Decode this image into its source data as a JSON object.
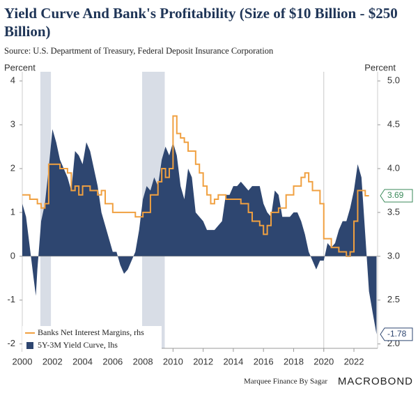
{
  "chart_data": {
    "type": "combo",
    "title": "Yield Curve And Bank's Profitability (Size of $10 Billion - $250 Billion)",
    "subtitle": "Source: U.S. Department of Treasury, Federal Deposit Insurance Corporation",
    "y_label": "Percent",
    "y2_label": "Percent",
    "footer": "Marquee Finance By Sagar",
    "brand": "MACROBOND",
    "xlim": [
      2000,
      2023.57
    ],
    "xticks": [
      2000,
      2002,
      2004,
      2006,
      2008,
      2010,
      2012,
      2014,
      2016,
      2018,
      2020,
      2022
    ],
    "ylim": [
      -2.1,
      4.05
    ],
    "yticks": [
      -2,
      -1,
      0,
      1,
      2,
      3,
      4
    ],
    "y2lim": [
      1.95,
      5.025
    ],
    "y2ticks": [
      {
        "value": 2,
        "label": "2.0"
      },
      2.5,
      {
        "value": 3,
        "label": "3.0"
      },
      3.5,
      {
        "value": 4,
        "label": "4.0"
      },
      4.5,
      {
        "value": 5,
        "label": "5.0"
      }
    ],
    "shaded_periods": [
      [
        2001.2,
        2001.9
      ],
      [
        2007.95,
        2009.45
      ]
    ],
    "reference_x": 2020,
    "series": [
      {
        "name": "Banks Net Interest Margins, rhs",
        "color": "#f0a040",
        "kind": "step",
        "axis": "y2",
        "x": [
          2000.0,
          2000.5,
          2001.0,
          2001.25,
          2001.5,
          2001.75,
          2002.5,
          2003.0,
          2003.25,
          2003.5,
          2003.75,
          2004.0,
          2004.5,
          2005.0,
          2005.25,
          2005.5,
          2006.0,
          2007.5,
          2008.0,
          2008.5,
          2009.0,
          2009.25,
          2009.5,
          2009.75,
          2010.0,
          2010.25,
          2010.5,
          2010.75,
          2011.0,
          2011.5,
          2011.75,
          2012.0,
          2012.25,
          2012.5,
          2012.75,
          2013.0,
          2013.5,
          2014.5,
          2015.0,
          2015.25,
          2015.75,
          2016.0,
          2016.25,
          2016.5,
          2017.0,
          2017.5,
          2018.0,
          2018.5,
          2018.75,
          2019.0,
          2019.25,
          2019.75,
          2020.0,
          2020.5,
          2021.0,
          2021.5,
          2021.75,
          2022.0,
          2022.25,
          2022.75,
          2023.0
        ],
        "values": [
          3.7,
          3.65,
          3.6,
          3.55,
          3.6,
          4.05,
          4.0,
          3.95,
          3.75,
          3.8,
          3.7,
          3.8,
          3.75,
          3.7,
          3.75,
          3.6,
          3.5,
          3.45,
          3.5,
          3.7,
          3.85,
          4.0,
          3.9,
          4.0,
          4.6,
          4.4,
          4.35,
          4.3,
          4.2,
          4.05,
          3.95,
          3.8,
          3.7,
          3.6,
          3.65,
          3.7,
          3.65,
          3.6,
          3.5,
          3.4,
          3.35,
          3.25,
          3.35,
          3.5,
          3.55,
          3.7,
          3.8,
          3.9,
          3.95,
          3.85,
          3.75,
          3.6,
          3.2,
          3.1,
          3.05,
          3.0,
          3.05,
          3.4,
          3.75,
          3.69,
          3.69
        ]
      },
      {
        "name": "5Y-3M Yield Curve, lhs",
        "color": "#2e4670",
        "kind": "area",
        "axis": "y",
        "x": [
          2000.0,
          2000.25,
          2000.5,
          2000.75,
          2000.9,
          2001.0,
          2001.25,
          2001.5,
          2001.75,
          2002.0,
          2002.25,
          2002.5,
          2002.75,
          2003.0,
          2003.25,
          2003.5,
          2003.75,
          2004.0,
          2004.25,
          2004.5,
          2004.75,
          2005.0,
          2005.25,
          2005.5,
          2005.75,
          2006.0,
          2006.25,
          2006.5,
          2006.75,
          2007.0,
          2007.25,
          2007.5,
          2007.75,
          2008.0,
          2008.25,
          2008.5,
          2008.75,
          2009.0,
          2009.25,
          2009.5,
          2009.75,
          2010.0,
          2010.25,
          2010.5,
          2010.75,
          2011.0,
          2011.25,
          2011.5,
          2011.75,
          2012.0,
          2012.25,
          2012.5,
          2012.75,
          2013.0,
          2013.25,
          2013.5,
          2013.75,
          2014.0,
          2014.25,
          2014.5,
          2014.75,
          2015.0,
          2015.25,
          2015.5,
          2015.75,
          2016.0,
          2016.25,
          2016.5,
          2016.75,
          2017.0,
          2017.25,
          2017.5,
          2017.75,
          2018.0,
          2018.25,
          2018.5,
          2018.75,
          2019.0,
          2019.25,
          2019.5,
          2019.75,
          2020.0,
          2020.25,
          2020.5,
          2020.75,
          2021.0,
          2021.25,
          2021.5,
          2021.75,
          2022.0,
          2022.25,
          2022.5,
          2022.75,
          2023.0,
          2023.25,
          2023.5
        ],
        "values": [
          1.2,
          0.9,
          0.2,
          -0.5,
          -0.9,
          -0.3,
          0.8,
          1.2,
          2.0,
          2.9,
          2.6,
          2.2,
          2.0,
          1.8,
          1.5,
          2.4,
          2.3,
          2.1,
          2.6,
          2.4,
          2.0,
          1.6,
          1.0,
          0.7,
          0.4,
          0.1,
          0.1,
          -0.2,
          -0.4,
          -0.3,
          -0.1,
          0.1,
          0.6,
          1.3,
          1.6,
          1.5,
          1.8,
          1.6,
          2.2,
          2.5,
          2.3,
          2.6,
          2.3,
          1.6,
          1.3,
          2.0,
          1.8,
          1.0,
          0.9,
          0.8,
          0.6,
          0.6,
          0.6,
          0.7,
          0.8,
          1.4,
          1.4,
          1.6,
          1.6,
          1.7,
          1.6,
          1.5,
          1.6,
          1.6,
          1.6,
          1.2,
          1.0,
          0.9,
          1.5,
          1.4,
          0.9,
          0.9,
          0.9,
          1.0,
          1.0,
          0.8,
          0.5,
          0.1,
          -0.1,
          -0.3,
          -0.1,
          -0.1,
          0.3,
          0.2,
          0.3,
          0.6,
          0.8,
          0.8,
          1.1,
          1.5,
          2.1,
          1.8,
          0.5,
          -0.8,
          -1.3,
          -1.78
        ]
      }
    ],
    "end_labels": [
      {
        "value": 3.69,
        "axis": "y2",
        "color": "#3a8a5a"
      },
      {
        "value": -1.78,
        "axis": "y",
        "color": "#2e4670"
      }
    ]
  }
}
